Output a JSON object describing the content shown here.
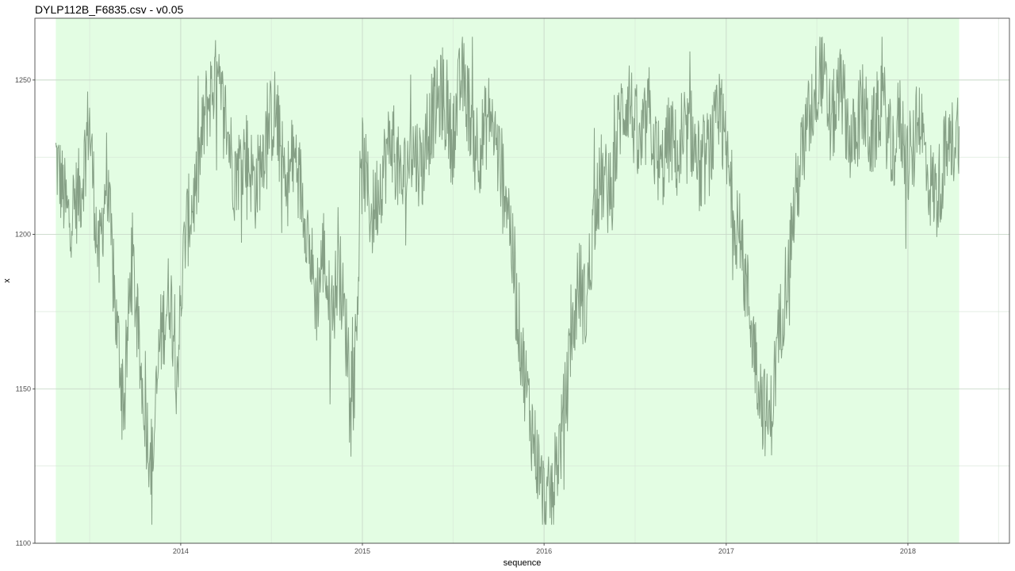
{
  "chart_data": {
    "type": "line",
    "title": "DYLP112B_F6835.csv - v0.05",
    "xlabel": "sequence",
    "ylabel": "x",
    "xlim": [
      "2013-03-14",
      "2018-07-24"
    ],
    "ylim": [
      1100,
      1270
    ],
    "x_ticks": [
      "2014",
      "2015",
      "2016",
      "2017",
      "2018"
    ],
    "y_ticks": [
      1100,
      1150,
      1200,
      1250
    ],
    "grid": true,
    "legend": "none",
    "highlight_range": {
      "start": "2013-04-25",
      "end": "2018-04-14",
      "color": "#e3fde3"
    },
    "line_color": "#86a086",
    "series": [
      {
        "points": [
          [
            "2013-04-25",
            1225
          ],
          [
            "2013-05-20",
            1205
          ],
          [
            "2013-06-15",
            1215
          ],
          [
            "2013-07-01",
            1238
          ],
          [
            "2013-07-20",
            1190
          ],
          [
            "2013-08-05",
            1220
          ],
          [
            "2013-08-25",
            1170
          ],
          [
            "2013-09-10",
            1145
          ],
          [
            "2013-09-25",
            1195
          ],
          [
            "2013-10-10",
            1160
          ],
          [
            "2013-10-25",
            1137
          ],
          [
            "2013-11-05",
            1125
          ],
          [
            "2013-11-20",
            1165
          ],
          [
            "2013-12-10",
            1182
          ],
          [
            "2013-12-25",
            1158
          ],
          [
            "2014-01-10",
            1200
          ],
          [
            "2014-02-01",
            1215
          ],
          [
            "2014-02-20",
            1240
          ],
          [
            "2014-03-10",
            1250
          ],
          [
            "2014-04-01",
            1238
          ],
          [
            "2014-04-20",
            1218
          ],
          [
            "2014-05-10",
            1228
          ],
          [
            "2014-06-01",
            1215
          ],
          [
            "2014-06-20",
            1232
          ],
          [
            "2014-07-10",
            1240
          ],
          [
            "2014-07-30",
            1215
          ],
          [
            "2014-08-20",
            1225
          ],
          [
            "2014-09-10",
            1205
          ],
          [
            "2014-09-30",
            1178
          ],
          [
            "2014-10-15",
            1195
          ],
          [
            "2014-10-30",
            1172
          ],
          [
            "2014-11-15",
            1190
          ],
          [
            "2014-12-01",
            1165
          ],
          [
            "2014-12-15",
            1150
          ],
          [
            "2015-01-01",
            1225
          ],
          [
            "2015-01-20",
            1205
          ],
          [
            "2015-02-10",
            1220
          ],
          [
            "2015-03-01",
            1232
          ],
          [
            "2015-03-20",
            1215
          ],
          [
            "2015-04-10",
            1228
          ],
          [
            "2015-05-01",
            1222
          ],
          [
            "2015-05-20",
            1238
          ],
          [
            "2015-06-10",
            1245
          ],
          [
            "2015-06-30",
            1230
          ],
          [
            "2015-07-20",
            1252
          ],
          [
            "2015-08-10",
            1235
          ],
          [
            "2015-08-25",
            1228
          ],
          [
            "2015-09-15",
            1240
          ],
          [
            "2015-10-01",
            1225
          ],
          [
            "2015-10-20",
            1212
          ],
          [
            "2015-11-05",
            1180
          ],
          [
            "2015-11-20",
            1158
          ],
          [
            "2015-12-05",
            1140
          ],
          [
            "2015-12-20",
            1125
          ],
          [
            "2016-01-05",
            1110
          ],
          [
            "2016-01-20",
            1120
          ],
          [
            "2016-02-05",
            1135
          ],
          [
            "2016-02-20",
            1155
          ],
          [
            "2016-03-10",
            1185
          ],
          [
            "2016-03-25",
            1175
          ],
          [
            "2016-04-10",
            1205
          ],
          [
            "2016-04-25",
            1218
          ],
          [
            "2016-05-15",
            1212
          ],
          [
            "2016-06-01",
            1238
          ],
          [
            "2016-06-20",
            1245
          ],
          [
            "2016-07-10",
            1225
          ],
          [
            "2016-07-30",
            1240
          ],
          [
            "2016-08-20",
            1218
          ],
          [
            "2016-09-10",
            1232
          ],
          [
            "2016-10-01",
            1222
          ],
          [
            "2016-10-20",
            1235
          ],
          [
            "2016-11-10",
            1220
          ],
          [
            "2016-11-30",
            1228
          ],
          [
            "2016-12-20",
            1238
          ],
          [
            "2017-01-10",
            1215
          ],
          [
            "2017-01-30",
            1195
          ],
          [
            "2017-02-15",
            1178
          ],
          [
            "2017-03-01",
            1160
          ],
          [
            "2017-03-15",
            1145
          ],
          [
            "2017-03-30",
            1138
          ],
          [
            "2017-04-15",
            1165
          ],
          [
            "2017-05-01",
            1185
          ],
          [
            "2017-05-15",
            1205
          ],
          [
            "2017-06-01",
            1225
          ],
          [
            "2017-06-20",
            1240
          ],
          [
            "2017-07-10",
            1255
          ],
          [
            "2017-07-30",
            1235
          ],
          [
            "2017-08-20",
            1248
          ],
          [
            "2017-09-10",
            1228
          ],
          [
            "2017-10-01",
            1242
          ],
          [
            "2017-10-20",
            1230
          ],
          [
            "2017-11-10",
            1245
          ],
          [
            "2017-11-30",
            1225
          ],
          [
            "2017-12-15",
            1238
          ],
          [
            "2018-01-05",
            1220
          ],
          [
            "2018-01-25",
            1240
          ],
          [
            "2018-02-10",
            1218
          ],
          [
            "2018-03-01",
            1212
          ],
          [
            "2018-03-15",
            1225
          ],
          [
            "2018-04-01",
            1230
          ],
          [
            "2018-04-14",
            1235
          ]
        ]
      }
    ]
  }
}
